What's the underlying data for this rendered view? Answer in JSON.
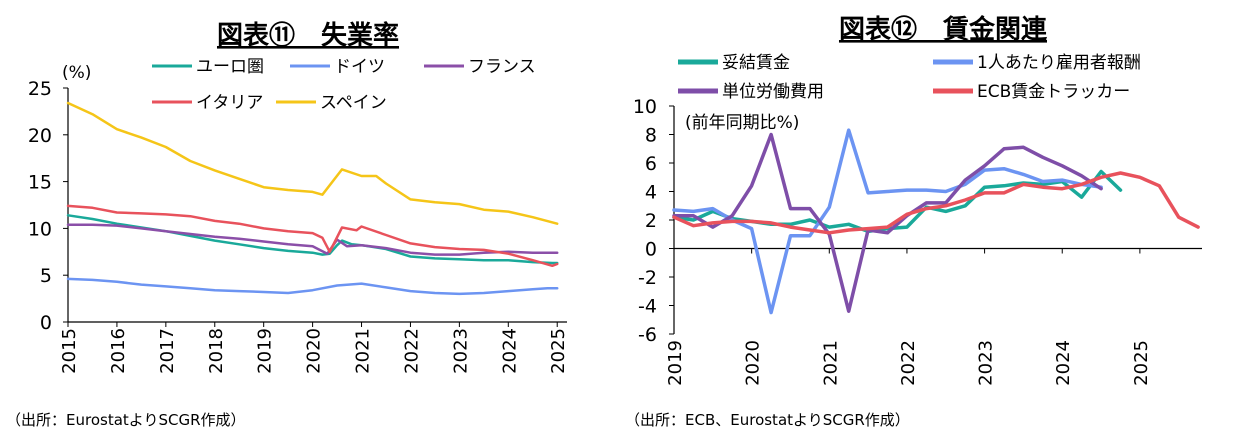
{
  "chart_data": [
    {
      "type": "line",
      "title": "図表⑪　失業率",
      "unit_label": "(%)",
      "source": "（出所：EurostatよりSCGR作成）",
      "ylim": [
        0,
        25
      ],
      "yticks": [
        0,
        5,
        10,
        15,
        20,
        25
      ],
      "xlim": [
        2015,
        2025.2
      ],
      "xticks": [
        "2015",
        "2016",
        "2017",
        "2018",
        "2019",
        "2020",
        "2021",
        "2022",
        "2023",
        "2024",
        "2025"
      ],
      "grid": false,
      "legend_position": "top",
      "series": [
        {
          "name": "ユーロ圏",
          "color": "#1aa99a",
          "x": [
            2015,
            2015.5,
            2016,
            2016.5,
            2017,
            2017.5,
            2018,
            2018.5,
            2019,
            2019.5,
            2020,
            2020.2,
            2020.35,
            2020.5,
            2020.6,
            2020.8,
            2021,
            2021.5,
            2022,
            2022.5,
            2023,
            2023.5,
            2024,
            2024.5,
            2024.9,
            2025
          ],
          "y": [
            11.4,
            11.0,
            10.5,
            10.1,
            9.7,
            9.2,
            8.7,
            8.3,
            7.9,
            7.6,
            7.4,
            7.2,
            7.3,
            8.2,
            8.7,
            8.3,
            8.2,
            7.8,
            7.0,
            6.8,
            6.7,
            6.6,
            6.6,
            6.4,
            6.3,
            6.3
          ]
        },
        {
          "name": "ドイツ",
          "color": "#6c94f2",
          "x": [
            2015,
            2015.5,
            2016,
            2016.5,
            2017,
            2017.5,
            2018,
            2018.5,
            2019,
            2019.5,
            2020,
            2020.5,
            2021,
            2021.5,
            2022,
            2022.5,
            2023,
            2023.5,
            2024,
            2024.5,
            2024.8,
            2025
          ],
          "y": [
            4.6,
            4.5,
            4.3,
            4.0,
            3.8,
            3.6,
            3.4,
            3.3,
            3.2,
            3.1,
            3.4,
            3.9,
            4.1,
            3.7,
            3.3,
            3.1,
            3.0,
            3.1,
            3.3,
            3.5,
            3.6,
            3.6
          ]
        },
        {
          "name": "フランス",
          "color": "#8b4fa8",
          "x": [
            2015,
            2015.5,
            2016,
            2016.5,
            2017,
            2017.5,
            2018,
            2018.5,
            2019,
            2019.5,
            2020,
            2020.3,
            2020.5,
            2020.7,
            2021,
            2021.5,
            2022,
            2022.5,
            2023,
            2023.5,
            2024,
            2024.5,
            2025
          ],
          "y": [
            10.4,
            10.4,
            10.3,
            10.0,
            9.7,
            9.4,
            9.1,
            8.9,
            8.6,
            8.3,
            8.1,
            7.3,
            8.8,
            8.1,
            8.2,
            7.9,
            7.4,
            7.2,
            7.2,
            7.4,
            7.5,
            7.4,
            7.4
          ]
        },
        {
          "name": "イタリア",
          "color": "#e8525c",
          "x": [
            2015,
            2015.5,
            2016,
            2016.5,
            2017,
            2017.5,
            2018,
            2018.5,
            2019,
            2019.5,
            2020,
            2020.2,
            2020.35,
            2020.6,
            2020.9,
            2021,
            2021.5,
            2022,
            2022.5,
            2023,
            2023.5,
            2024,
            2024.5,
            2024.9,
            2025
          ],
          "y": [
            12.4,
            12.2,
            11.7,
            11.6,
            11.5,
            11.3,
            10.8,
            10.5,
            10.0,
            9.7,
            9.5,
            9.0,
            7.5,
            10.1,
            9.8,
            10.2,
            9.3,
            8.4,
            8.0,
            7.8,
            7.7,
            7.3,
            6.6,
            6.0,
            6.2
          ]
        },
        {
          "name": "スペイン",
          "color": "#f5c518",
          "x": [
            2015,
            2015.5,
            2016,
            2016.5,
            2017,
            2017.5,
            2018,
            2018.5,
            2019,
            2019.5,
            2020,
            2020.2,
            2020.6,
            2021,
            2021.3,
            2021.5,
            2022,
            2022.5,
            2023,
            2023.5,
            2024,
            2024.5,
            2025
          ],
          "y": [
            23.4,
            22.2,
            20.6,
            19.7,
            18.7,
            17.2,
            16.2,
            15.3,
            14.4,
            14.1,
            13.9,
            13.6,
            16.3,
            15.6,
            15.6,
            14.8,
            13.1,
            12.8,
            12.6,
            12.0,
            11.8,
            11.2,
            10.5
          ]
        }
      ]
    },
    {
      "type": "line",
      "title": "図表⑫　賃金関連",
      "unit_label": "(前年同期比%)",
      "source": "（出所：ECB、EurostatよりSCGR作成）",
      "ylim": [
        -6,
        10
      ],
      "yticks": [
        -6,
        -4,
        -2,
        0,
        2,
        4,
        6,
        8,
        10
      ],
      "xlim": [
        2019,
        2025.8
      ],
      "xticks": [
        "2019",
        "2020",
        "2021",
        "2022",
        "2023",
        "2024",
        "2025"
      ],
      "grid": false,
      "legend_position": "top",
      "series": [
        {
          "name": "妥結賃金",
          "color": "#1aa99a",
          "x": [
            2019,
            2019.25,
            2019.5,
            2019.75,
            2020,
            2020.25,
            2020.5,
            2020.75,
            2021,
            2021.25,
            2021.5,
            2021.75,
            2022,
            2022.25,
            2022.5,
            2022.75,
            2023,
            2023.25,
            2023.5,
            2023.75,
            2024,
            2024.25,
            2024.5,
            2024.75
          ],
          "y": [
            2.2,
            2.0,
            2.6,
            2.1,
            1.9,
            1.7,
            1.7,
            2.0,
            1.5,
            1.7,
            1.2,
            1.4,
            1.5,
            2.9,
            2.6,
            3.0,
            4.3,
            4.4,
            4.6,
            4.5,
            4.7,
            3.6,
            5.4,
            4.1
          ]
        },
        {
          "name": "1人あたり雇用者報酬",
          "color": "#6c94f2",
          "x": [
            2019,
            2019.25,
            2019.5,
            2019.75,
            2020,
            2020.25,
            2020.5,
            2020.75,
            2021,
            2021.25,
            2021.5,
            2021.75,
            2022,
            2022.25,
            2022.5,
            2022.75,
            2023,
            2023.25,
            2023.5,
            2023.75,
            2024,
            2024.25,
            2024.5
          ],
          "y": [
            2.7,
            2.6,
            2.8,
            2.0,
            1.4,
            -4.5,
            0.9,
            0.9,
            2.9,
            8.3,
            3.9,
            4.0,
            4.1,
            4.1,
            4.0,
            4.5,
            5.5,
            5.6,
            5.2,
            4.7,
            4.8,
            4.5,
            4.3
          ]
        },
        {
          "name": "単位労働費用",
          "color": "#7e4ea8",
          "x": [
            2019,
            2019.25,
            2019.5,
            2019.75,
            2020,
            2020.25,
            2020.5,
            2020.75,
            2021,
            2021.25,
            2021.5,
            2021.75,
            2022,
            2022.25,
            2022.5,
            2022.75,
            2023,
            2023.25,
            2023.5,
            2023.75,
            2024,
            2024.25,
            2024.5
          ],
          "y": [
            2.3,
            2.3,
            1.5,
            2.3,
            4.4,
            8.0,
            2.8,
            2.8,
            1.0,
            -4.4,
            1.3,
            1.1,
            2.3,
            3.2,
            3.2,
            4.8,
            5.8,
            7.0,
            7.1,
            6.4,
            5.8,
            5.1,
            4.2
          ]
        },
        {
          "name": "ECB賃金トラッカー",
          "color": "#e8525c",
          "x": [
            2019,
            2019.25,
            2019.5,
            2019.75,
            2020,
            2020.25,
            2020.5,
            2020.75,
            2021,
            2021.25,
            2021.5,
            2021.75,
            2022,
            2022.25,
            2022.5,
            2022.75,
            2023,
            2023.25,
            2023.5,
            2023.75,
            2024,
            2024.25,
            2024.5,
            2024.75,
            2025,
            2025.25,
            2025.5,
            2025.75
          ],
          "y": [
            2.2,
            1.6,
            1.8,
            1.9,
            1.9,
            1.8,
            1.5,
            1.3,
            1.1,
            1.3,
            1.4,
            1.5,
            2.4,
            2.8,
            3.0,
            3.4,
            3.9,
            3.9,
            4.5,
            4.3,
            4.2,
            4.5,
            5.0,
            5.3,
            5.0,
            4.4,
            2.2,
            1.5
          ]
        }
      ]
    }
  ]
}
